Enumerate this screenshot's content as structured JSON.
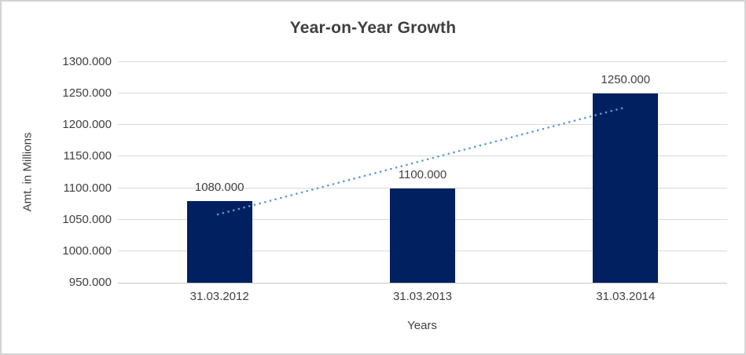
{
  "frame": {
    "border_color": "#d3d3d3",
    "background_color": "#ffffff"
  },
  "chart_data": {
    "type": "bar",
    "title": "Year-on-Year Growth",
    "xlabel": "Years",
    "ylabel": "Amt. in Millions",
    "categories": [
      "31.03.2012",
      "31.03.2013",
      "31.03.2014"
    ],
    "values": [
      1080,
      1100,
      1250
    ],
    "data_labels": [
      "1080.000",
      "1100.000",
      "1250.000"
    ],
    "ylim": [
      950,
      1300
    ],
    "ytick_step": 50,
    "ytick_labels": [
      "950.000",
      "1000.000",
      "1050.000",
      "1100.000",
      "1150.000",
      "1200.000",
      "1250.000",
      "1300.000"
    ],
    "grid": true,
    "legend_position": "none",
    "bar_color": "#002060",
    "grid_color": "#d9d9d9",
    "axis_line_color": "#c6c6c6",
    "text_color": "#404040",
    "trendline": {
      "type": "linear",
      "style": "dotted",
      "color": "#5b9bd5",
      "start_value": 1058.3,
      "end_value": 1228.3
    }
  }
}
